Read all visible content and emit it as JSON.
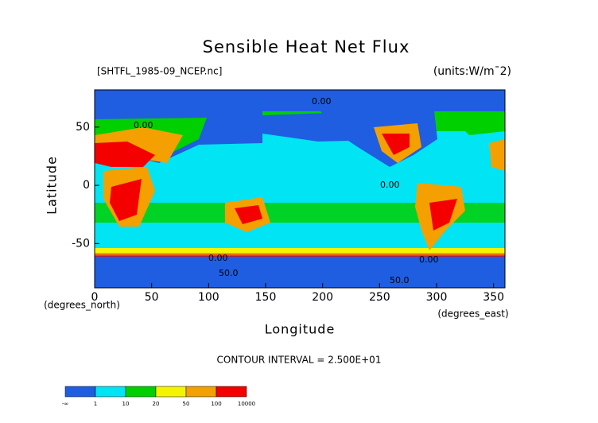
{
  "chart_data": {
    "type": "contour-map",
    "title": "Sensible Heat Net Flux",
    "file_label": "[SHTFL_1985-09_NCEP.nc]",
    "units_label": "(units:W/m¯2)",
    "x_label": "Longitude",
    "y_label": "Latitude",
    "x_unit_label": "(degrees_east)",
    "y_unit_label": "(degrees_north)",
    "contour_interval": "CONTOUR INTERVAL = 2.500E+01",
    "contour_labels": [
      "0.00",
      "0.00",
      "0.00",
      "0.00",
      "0.00",
      "50.0",
      "50.0"
    ],
    "xlim": [
      0,
      360
    ],
    "xticks": [
      0,
      50,
      100,
      150,
      200,
      250,
      300,
      350
    ],
    "ylim": [
      -88,
      82
    ],
    "yticks": [
      -50,
      0,
      50
    ],
    "colorbar": {
      "colors": [
        "#1f5ee0",
        "#00e4f4",
        "#00d000",
        "#f4f400",
        "#f4a000",
        "#f40000"
      ],
      "labels": [
        "-∞",
        "1",
        "10",
        "20",
        "50",
        "100",
        "10000"
      ]
    }
  }
}
